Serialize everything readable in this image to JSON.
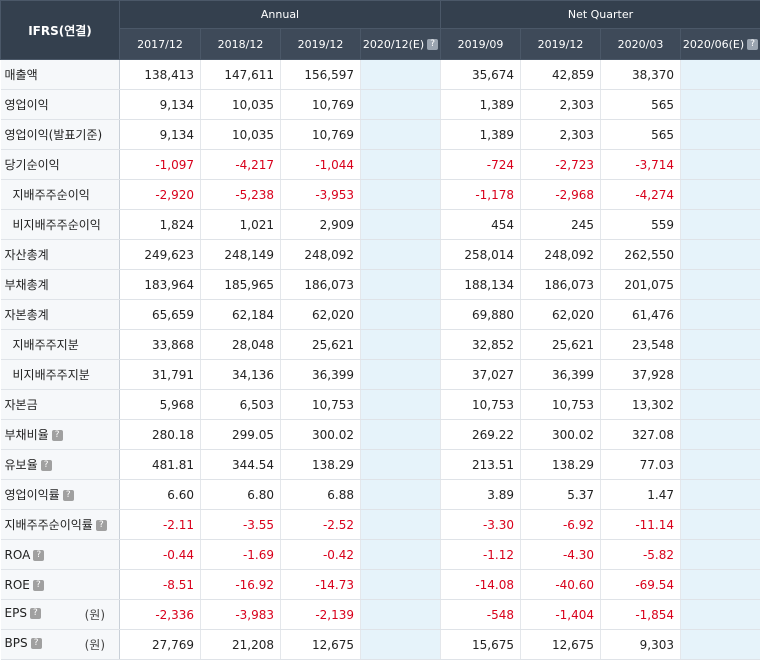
{
  "header": {
    "corner": "IFRS(연결)",
    "annual": "Annual",
    "quarter": "Net Quarter",
    "periods": [
      "2017/12",
      "2018/12",
      "2019/12",
      "2020/12(E)",
      "2019/09",
      "2019/12",
      "2020/03",
      "2020/06(E)"
    ]
  },
  "rows": [
    {
      "label": "매출액",
      "values": [
        "138,413",
        "147,611",
        "156,597",
        "",
        "35,674",
        "42,859",
        "38,370",
        ""
      ]
    },
    {
      "label": "영업이익",
      "values": [
        "9,134",
        "10,035",
        "10,769",
        "",
        "1,389",
        "2,303",
        "565",
        ""
      ]
    },
    {
      "label": "영업이익(발표기준)",
      "values": [
        "9,134",
        "10,035",
        "10,769",
        "",
        "1,389",
        "2,303",
        "565",
        ""
      ]
    },
    {
      "label": "당기순이익",
      "values": [
        "-1,097",
        "-4,217",
        "-1,044",
        "",
        "-724",
        "-2,723",
        "-3,714",
        ""
      ]
    },
    {
      "label": "지배주주순이익",
      "values": [
        "-2,920",
        "-5,238",
        "-3,953",
        "",
        "-1,178",
        "-2,968",
        "-4,274",
        ""
      ]
    },
    {
      "label": "비지배주주순이익",
      "values": [
        "1,824",
        "1,021",
        "2,909",
        "",
        "454",
        "245",
        "559",
        ""
      ]
    },
    {
      "label": "자산총계",
      "values": [
        "249,623",
        "248,149",
        "248,092",
        "",
        "258,014",
        "248,092",
        "262,550",
        ""
      ]
    },
    {
      "label": "부채총계",
      "values": [
        "183,964",
        "185,965",
        "186,073",
        "",
        "188,134",
        "186,073",
        "201,075",
        ""
      ]
    },
    {
      "label": "자본총계",
      "values": [
        "65,659",
        "62,184",
        "62,020",
        "",
        "69,880",
        "62,020",
        "61,476",
        ""
      ]
    },
    {
      "label": "지배주주지분",
      "values": [
        "33,868",
        "28,048",
        "25,621",
        "",
        "32,852",
        "25,621",
        "23,548",
        ""
      ]
    },
    {
      "label": "비지배주주지분",
      "values": [
        "31,791",
        "34,136",
        "36,399",
        "",
        "37,027",
        "36,399",
        "37,928",
        ""
      ]
    },
    {
      "label": "자본금",
      "values": [
        "5,968",
        "6,503",
        "10,753",
        "",
        "10,753",
        "10,753",
        "13,302",
        ""
      ]
    },
    {
      "label": "부채비율",
      "values": [
        "280.18",
        "299.05",
        "300.02",
        "",
        "269.22",
        "300.02",
        "327.08",
        ""
      ]
    },
    {
      "label": "유보율",
      "values": [
        "481.81",
        "344.54",
        "138.29",
        "",
        "213.51",
        "138.29",
        "77.03",
        ""
      ]
    },
    {
      "label": "영업이익률",
      "values": [
        "6.60",
        "6.80",
        "6.88",
        "",
        "3.89",
        "5.37",
        "1.47",
        ""
      ]
    },
    {
      "label": "지배주주순이익률",
      "values": [
        "-2.11",
        "-3.55",
        "-2.52",
        "",
        "-3.30",
        "-6.92",
        "-11.14",
        ""
      ]
    },
    {
      "label": "ROA",
      "values": [
        "-0.44",
        "-1.69",
        "-0.42",
        "",
        "-1.12",
        "-4.30",
        "-5.82",
        ""
      ]
    },
    {
      "label": "ROE",
      "values": [
        "-8.51",
        "-16.92",
        "-14.73",
        "",
        "-14.08",
        "-40.60",
        "-69.54",
        ""
      ]
    },
    {
      "label": "EPS",
      "unit": "(원)",
      "values": [
        "-2,336",
        "-3,983",
        "-2,139",
        "",
        "-548",
        "-1,404",
        "-1,854",
        ""
      ]
    },
    {
      "label": "BPS",
      "unit": "(원)",
      "values": [
        "27,769",
        "21,208",
        "12,675",
        "",
        "15,675",
        "12,675",
        "9,303",
        ""
      ]
    }
  ]
}
